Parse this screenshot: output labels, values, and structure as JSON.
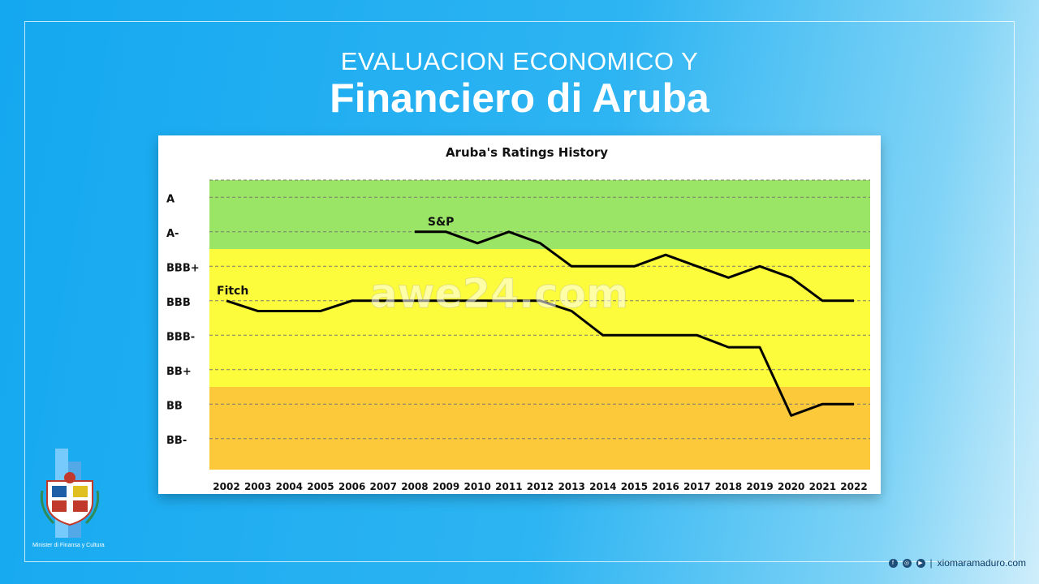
{
  "header": {
    "line1": "EVALUACION ECONOMICO Y",
    "line2": "Financiero di Aruba"
  },
  "watermark": "awe24.com",
  "logo": {
    "caption": "Minister di Finansa y Cultura"
  },
  "footer": {
    "icons": [
      "facebook-icon",
      "instagram-icon",
      "youtube-icon"
    ],
    "separator": "|",
    "site": "xiomaramaduro.com"
  },
  "chart_data": {
    "type": "line",
    "title": "Aruba's Ratings History",
    "xlabel": "",
    "ylabel": "",
    "categories": [
      "2002",
      "2003",
      "2004",
      "2005",
      "2006",
      "2007",
      "2008",
      "2009",
      "2010",
      "2011",
      "2012",
      "2013",
      "2014",
      "2015",
      "2016",
      "2017",
      "2018",
      "2019",
      "2020",
      "2021",
      "2022"
    ],
    "y_levels": [
      "BB-",
      "BB",
      "BB+",
      "BBB-",
      "BBB",
      "BBB+",
      "A-",
      "A"
    ],
    "grid": true,
    "bands": [
      {
        "from": "BB-",
        "to": "BB",
        "color": "#fbc93a"
      },
      {
        "from": "BB+",
        "to": "BBB+",
        "color": "#fcfc3c"
      },
      {
        "from": "A-",
        "to": "A",
        "color": "#9ae466"
      }
    ],
    "series": [
      {
        "name": "Fitch",
        "color": "#000000",
        "values": [
          {
            "x": 2002.0,
            "y": 4.0
          },
          {
            "x": 2003.0,
            "y": 3.7
          },
          {
            "x": 2005.0,
            "y": 3.7
          },
          {
            "x": 2006.0,
            "y": 4.0
          },
          {
            "x": 2012.0,
            "y": 4.0
          },
          {
            "x": 2013.0,
            "y": 3.7
          },
          {
            "x": 2014.0,
            "y": 3.0
          },
          {
            "x": 2017.0,
            "y": 3.0
          },
          {
            "x": 2018.0,
            "y": 2.65
          },
          {
            "x": 2019.0,
            "y": 2.65
          },
          {
            "x": 2020.0,
            "y": 0.67
          },
          {
            "x": 2021.0,
            "y": 1.0
          },
          {
            "x": 2022.0,
            "y": 1.0
          }
        ]
      },
      {
        "name": "S&P",
        "color": "#000000",
        "values": [
          {
            "x": 2008.0,
            "y": 6.0
          },
          {
            "x": 2009.0,
            "y": 6.0
          },
          {
            "x": 2010.0,
            "y": 5.67
          },
          {
            "x": 2011.0,
            "y": 6.0
          },
          {
            "x": 2012.0,
            "y": 5.67
          },
          {
            "x": 2013.0,
            "y": 5.0
          },
          {
            "x": 2015.0,
            "y": 5.0
          },
          {
            "x": 2016.0,
            "y": 5.33
          },
          {
            "x": 2017.0,
            "y": 5.0
          },
          {
            "x": 2018.0,
            "y": 4.67
          },
          {
            "x": 2019.0,
            "y": 5.0
          },
          {
            "x": 2020.0,
            "y": 4.67
          },
          {
            "x": 2021.0,
            "y": 4.0
          },
          {
            "x": 2022.0,
            "y": 4.0
          }
        ]
      }
    ]
  }
}
